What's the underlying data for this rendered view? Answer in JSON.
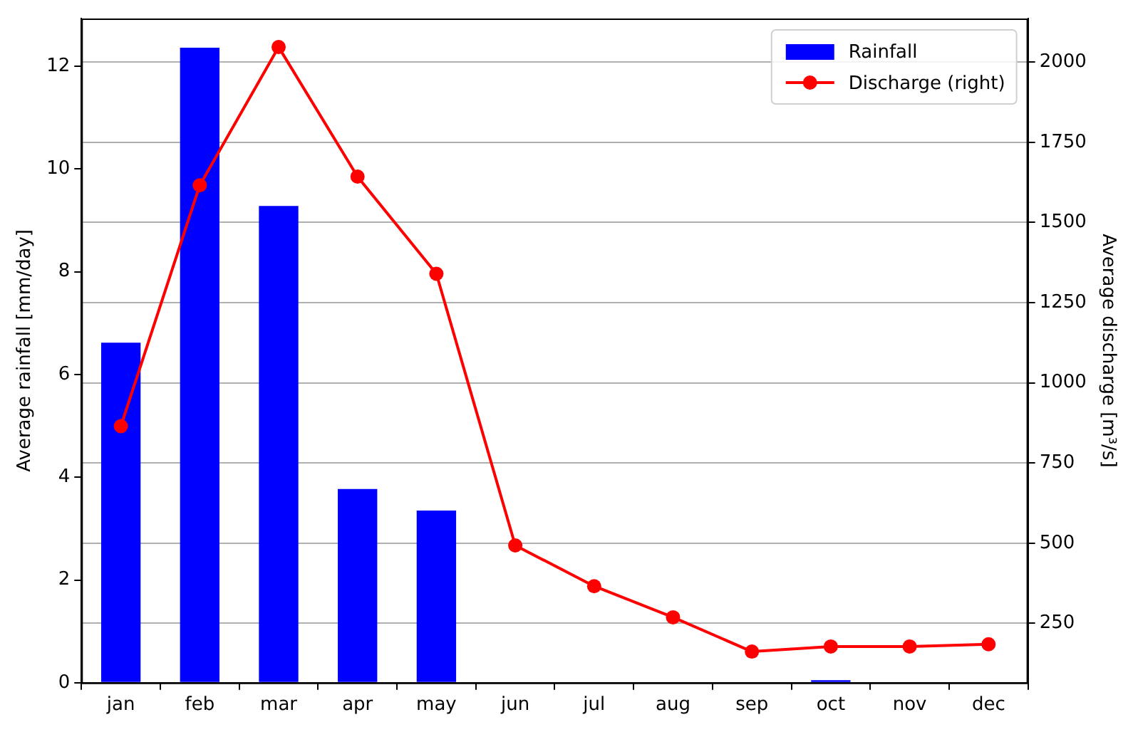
{
  "chart_data": {
    "type": "bar",
    "categories": [
      "jan",
      "feb",
      "mar",
      "apr",
      "may",
      "jun",
      "jul",
      "aug",
      "sep",
      "oct",
      "nov",
      "dec"
    ],
    "ylabel": "Average rainfall [mm/day]",
    "y2label": "Average discharge [m³/s]",
    "ylim": [
      0,
      12.93
    ],
    "yticks": [
      0,
      2,
      4,
      6,
      8,
      10,
      12
    ],
    "y2lim": [
      65,
      2136
    ],
    "y2ticks": [
      250,
      500,
      750,
      1000,
      1250,
      1500,
      1750,
      2000
    ],
    "grid": "y",
    "legend": "top right",
    "marker": "circle",
    "series": [
      {
        "name": "Rainfall",
        "color": "#0000ff",
        "values": [
          6.62,
          12.36,
          9.28,
          3.77,
          3.35,
          0,
          0,
          0,
          0,
          0.05,
          0,
          0
        ]
      },
      {
        "name": "Discharge (right)",
        "type": "line",
        "axis": "y2",
        "color": "#ff0000",
        "values": [
          865,
          1616,
          2047,
          1643,
          1340,
          493,
          366,
          269,
          162,
          178,
          178,
          185
        ]
      }
    ]
  }
}
